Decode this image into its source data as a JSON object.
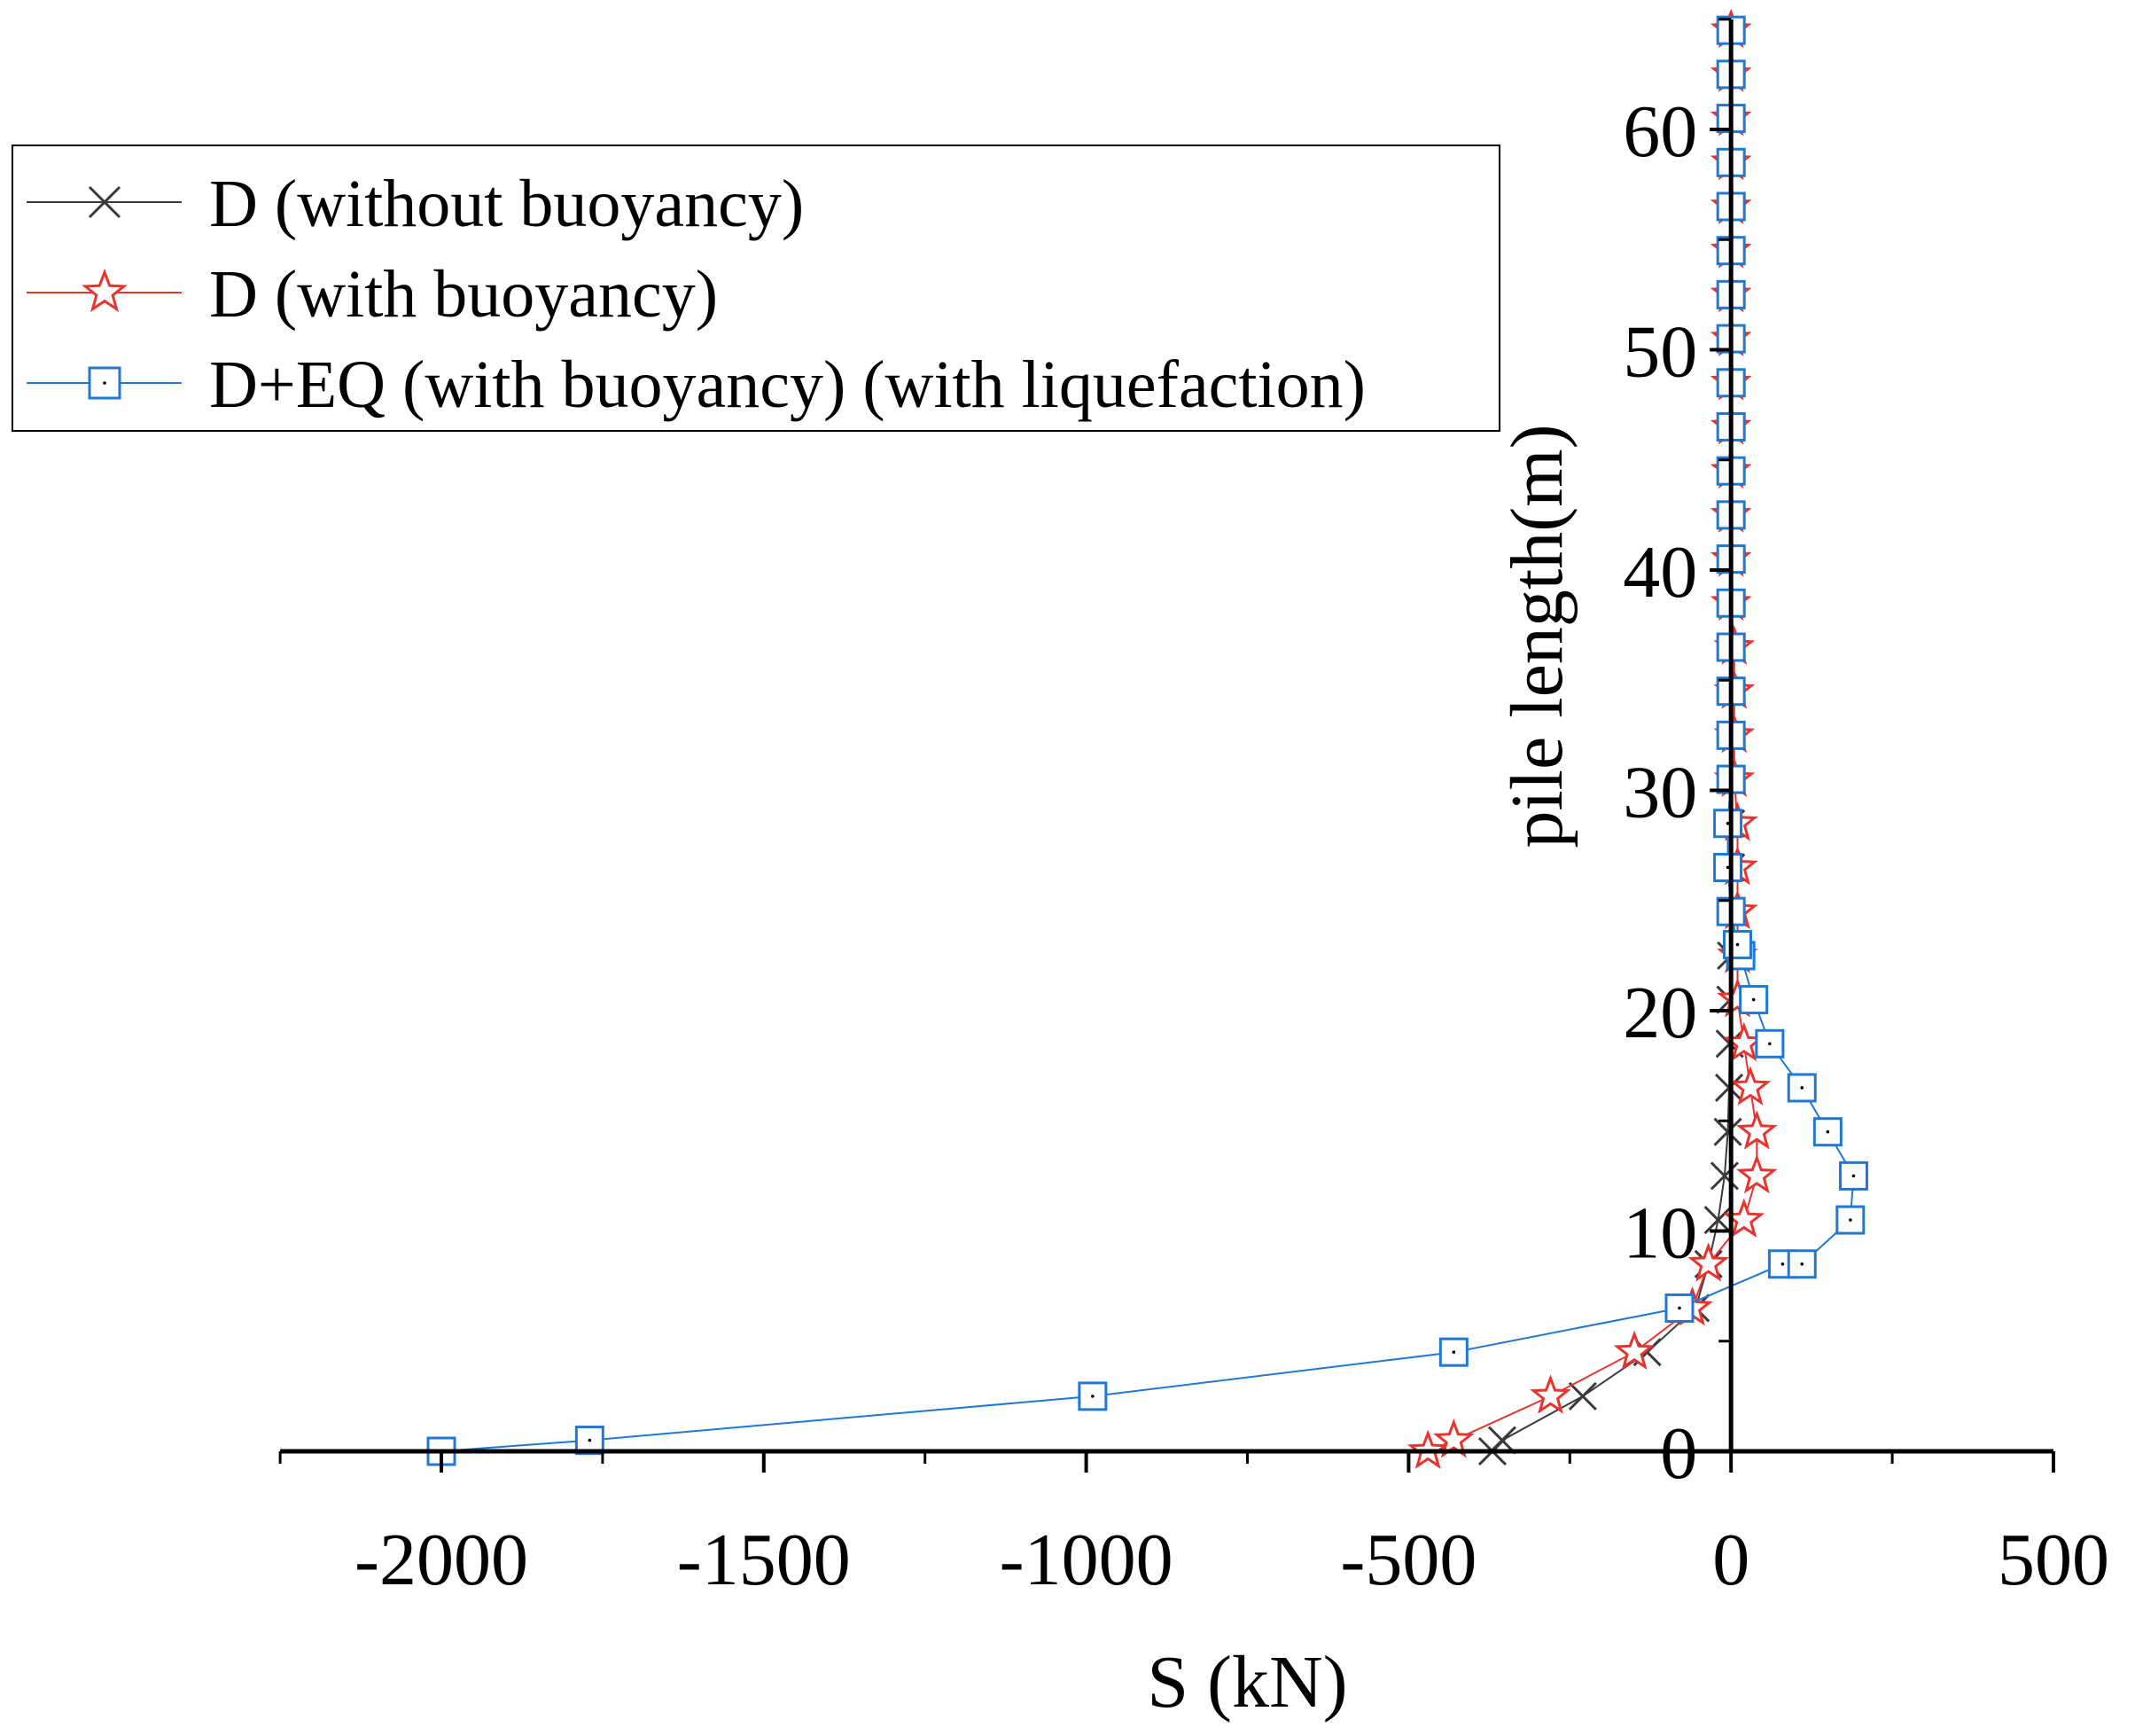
{
  "chart_data": {
    "type": "line",
    "title": "",
    "xlabel": "S (kN)",
    "ylabel": "pile length(m)",
    "xlim": [
      -2250,
      500
    ],
    "ylim": [
      0,
      65
    ],
    "x_ticks": [
      -2000,
      -1500,
      -1000,
      -500,
      0,
      500
    ],
    "x_tick_labels": [
      "-2000",
      "-1500",
      "-1000",
      "-500",
      "0",
      "500"
    ],
    "y_ticks": [
      0,
      10,
      20,
      30,
      40,
      50,
      60
    ],
    "y_tick_labels": [
      "0",
      "10",
      "20",
      "30",
      "40",
      "50",
      "60"
    ],
    "grid": false,
    "legend_position": "top-left",
    "series": [
      {
        "name": "D (without buoyancy)",
        "color": "#3a3a3a",
        "marker": "x",
        "points": [
          {
            "x": -370,
            "y": 0
          },
          {
            "x": -355,
            "y": 0.5
          },
          {
            "x": -230,
            "y": 2.5
          },
          {
            "x": -130,
            "y": 4.5
          },
          {
            "x": -55,
            "y": 6.5
          },
          {
            "x": -35,
            "y": 8.5
          },
          {
            "x": -20,
            "y": 10.5
          },
          {
            "x": -10,
            "y": 12.5
          },
          {
            "x": -5,
            "y": 14.5
          },
          {
            "x": -3,
            "y": 16.5
          },
          {
            "x": -2,
            "y": 18.5
          },
          {
            "x": -1,
            "y": 20.5
          },
          {
            "x": 0,
            "y": 22.5
          },
          {
            "x": 0,
            "y": 24.5
          },
          {
            "x": 0,
            "y": 26.5
          },
          {
            "x": 0,
            "y": 28.5
          },
          {
            "x": 0,
            "y": 30.5
          },
          {
            "x": 0,
            "y": 32.5
          },
          {
            "x": 0,
            "y": 34.5
          },
          {
            "x": 0,
            "y": 36.5
          },
          {
            "x": 0,
            "y": 38.5
          },
          {
            "x": 0,
            "y": 40.5
          },
          {
            "x": 0,
            "y": 42.5
          },
          {
            "x": 0,
            "y": 44.5
          },
          {
            "x": 0,
            "y": 46.5
          },
          {
            "x": 0,
            "y": 48.5
          },
          {
            "x": 0,
            "y": 50.5
          },
          {
            "x": 0,
            "y": 52.5
          },
          {
            "x": 0,
            "y": 54.5
          },
          {
            "x": 0,
            "y": 56.5
          },
          {
            "x": 0,
            "y": 58.5
          },
          {
            "x": 0,
            "y": 60.5
          },
          {
            "x": 0,
            "y": 62.5
          },
          {
            "x": 0,
            "y": 64.5
          }
        ]
      },
      {
        "name": "D (with buoyancy)",
        "color": "#e8332e",
        "marker": "star",
        "points": [
          {
            "x": -470,
            "y": 0
          },
          {
            "x": -430,
            "y": 0.5
          },
          {
            "x": -280,
            "y": 2.5
          },
          {
            "x": -150,
            "y": 4.5
          },
          {
            "x": -60,
            "y": 6.5
          },
          {
            "x": -35,
            "y": 8.5
          },
          {
            "x": 20,
            "y": 10.5
          },
          {
            "x": 40,
            "y": 12.5
          },
          {
            "x": 40,
            "y": 14.5
          },
          {
            "x": 30,
            "y": 16.5
          },
          {
            "x": 20,
            "y": 18.5
          },
          {
            "x": 10,
            "y": 20.5
          },
          {
            "x": 10,
            "y": 22.5
          },
          {
            "x": 10,
            "y": 24.5
          },
          {
            "x": 10,
            "y": 26.5
          },
          {
            "x": 10,
            "y": 28.5
          },
          {
            "x": 5,
            "y": 30.5
          },
          {
            "x": 5,
            "y": 32.5
          },
          {
            "x": 5,
            "y": 34.5
          },
          {
            "x": 5,
            "y": 36.5
          },
          {
            "x": 0,
            "y": 38.5
          },
          {
            "x": 0,
            "y": 40.5
          },
          {
            "x": 0,
            "y": 42.5
          },
          {
            "x": 0,
            "y": 44.5
          },
          {
            "x": 0,
            "y": 46.5
          },
          {
            "x": 0,
            "y": 48.5
          },
          {
            "x": 0,
            "y": 50.5
          },
          {
            "x": 0,
            "y": 52.5
          },
          {
            "x": 0,
            "y": 54.5
          },
          {
            "x": 0,
            "y": 56.5
          },
          {
            "x": 0,
            "y": 58.5
          },
          {
            "x": 0,
            "y": 60.5
          },
          {
            "x": 0,
            "y": 62.5
          },
          {
            "x": 0,
            "y": 64.5
          }
        ]
      },
      {
        "name": "D+EQ (with buoyancy) (with liquefaction)",
        "color": "#1f78d1",
        "marker": "square",
        "points": [
          {
            "x": -2000,
            "y": 0
          },
          {
            "x": -1770,
            "y": 0.5
          },
          {
            "x": -990,
            "y": 2.5
          },
          {
            "x": -430,
            "y": 4.5
          },
          {
            "x": -80,
            "y": 6.5
          },
          {
            "x": 80,
            "y": 8.5
          },
          {
            "x": 110,
            "y": 8.5
          },
          {
            "x": 185,
            "y": 10.5
          },
          {
            "x": 190,
            "y": 12.5
          },
          {
            "x": 150,
            "y": 14.5
          },
          {
            "x": 110,
            "y": 16.5
          },
          {
            "x": 60,
            "y": 18.5
          },
          {
            "x": 35,
            "y": 20.5
          },
          {
            "x": 15,
            "y": 22.5
          },
          {
            "x": 10,
            "y": 23
          },
          {
            "x": 0,
            "y": 24.5
          },
          {
            "x": -5,
            "y": 26.5
          },
          {
            "x": -5,
            "y": 28.5
          },
          {
            "x": 0,
            "y": 30.5
          },
          {
            "x": 0,
            "y": 32.5
          },
          {
            "x": 0,
            "y": 34.5
          },
          {
            "x": 0,
            "y": 36.5
          },
          {
            "x": 0,
            "y": 38.5
          },
          {
            "x": 0,
            "y": 40.5
          },
          {
            "x": 0,
            "y": 42.5
          },
          {
            "x": 0,
            "y": 44.5
          },
          {
            "x": 0,
            "y": 46.5
          },
          {
            "x": 0,
            "y": 48.5
          },
          {
            "x": 0,
            "y": 50.5
          },
          {
            "x": 0,
            "y": 52.5
          },
          {
            "x": 0,
            "y": 54.5
          },
          {
            "x": 0,
            "y": 56.5
          },
          {
            "x": 0,
            "y": 58.5
          },
          {
            "x": 0,
            "y": 60.5
          },
          {
            "x": 0,
            "y": 62.5
          },
          {
            "x": 0,
            "y": 64.5
          }
        ]
      }
    ]
  }
}
